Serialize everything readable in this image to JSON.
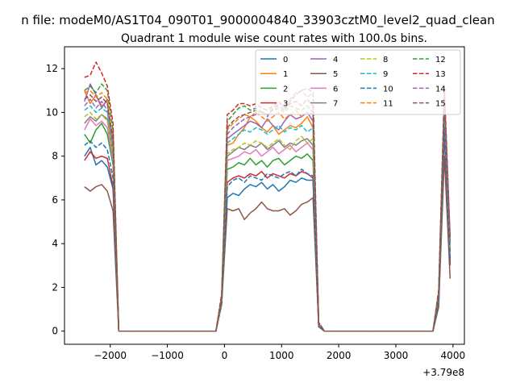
{
  "chart_data": {
    "type": "line",
    "suptitle": "n file: modeM0/AS1T04_090T01_9000004840_33903cztM0_level2_quad_clean",
    "title": "Quadrant 1 module wise count rates with 100.0s bins.",
    "xlabel": "",
    "ylabel": "",
    "x_offset_label": "+3.79e8",
    "xlim": [
      -2800,
      4200
    ],
    "ylim": [
      -0.6,
      13.0
    ],
    "x_ticks": [
      -2000,
      -1000,
      0,
      1000,
      2000,
      3000,
      4000
    ],
    "x_tick_labels": [
      "−2000",
      "−1000",
      "0",
      "1000",
      "2000",
      "3000",
      "4000"
    ],
    "y_ticks": [
      0,
      2,
      4,
      6,
      8,
      10,
      12
    ],
    "y_tick_labels": [
      "0",
      "2",
      "4",
      "6",
      "8",
      "10",
      "12"
    ],
    "grid": false,
    "legend_location": "upper-right",
    "legend_columns": 4,
    "x": [
      -2450,
      -2350,
      -2250,
      -2150,
      -2050,
      -1950,
      -1850,
      -1750,
      -150,
      -50,
      50,
      150,
      250,
      350,
      450,
      550,
      650,
      750,
      850,
      950,
      1050,
      1150,
      1250,
      1350,
      1450,
      1550,
      1650,
      1750,
      1850,
      1950,
      3650,
      3750,
      3850,
      3950
    ],
    "series": [
      {
        "name": "0",
        "color": "#1f77b4",
        "dash": "solid",
        "values": [
          8.0,
          8.4,
          7.6,
          7.8,
          7.5,
          6.5,
          0,
          0,
          0,
          1.3,
          6.1,
          6.3,
          6.2,
          6.5,
          6.7,
          6.6,
          6.8,
          6.5,
          6.7,
          6.4,
          6.6,
          6.9,
          6.8,
          7.0,
          6.9,
          6.9,
          0.2,
          0,
          0,
          0,
          0,
          1.2,
          9.0,
          3.0
        ]
      },
      {
        "name": "1",
        "color": "#ff7f0e",
        "dash": "solid",
        "values": [
          11.0,
          10.4,
          10.8,
          10.3,
          10.5,
          7.6,
          0,
          0,
          0,
          1.4,
          8.5,
          8.6,
          9.0,
          9.3,
          9.8,
          9.6,
          9.3,
          9.1,
          9.4,
          9.0,
          9.2,
          9.4,
          9.3,
          9.5,
          9.8,
          9.3,
          0.3,
          0,
          0,
          0,
          0,
          1.6,
          9.8,
          3.6
        ]
      },
      {
        "name": "2",
        "color": "#2ca02c",
        "dash": "solid",
        "values": [
          9.0,
          8.6,
          9.2,
          9.5,
          9.0,
          7.6,
          0,
          0,
          0,
          1.3,
          7.4,
          7.5,
          7.7,
          7.6,
          7.9,
          7.6,
          7.8,
          7.5,
          7.8,
          7.9,
          7.6,
          7.8,
          8.0,
          7.9,
          8.1,
          7.8,
          0.3,
          0,
          0,
          0,
          0,
          1.4,
          9.6,
          3.3
        ]
      },
      {
        "name": "3",
        "color": "#d62728",
        "dash": "solid",
        "values": [
          7.8,
          8.2,
          7.9,
          8.0,
          7.9,
          6.6,
          0,
          0,
          0,
          1.3,
          6.8,
          7.0,
          7.1,
          7.0,
          7.2,
          7.1,
          7.3,
          7.0,
          7.2,
          7.1,
          7.0,
          7.2,
          7.1,
          7.3,
          7.2,
          7.0,
          0.2,
          0,
          0,
          0,
          0,
          1.3,
          9.2,
          3.1
        ]
      },
      {
        "name": "4",
        "color": "#9467bd",
        "dash": "solid",
        "values": [
          10.5,
          11.3,
          10.8,
          10.2,
          10.6,
          8.2,
          0,
          0,
          0,
          1.5,
          8.8,
          9.0,
          9.2,
          9.4,
          9.6,
          9.5,
          9.3,
          9.7,
          9.4,
          9.2,
          9.6,
          9.9,
          9.7,
          9.8,
          10.0,
          9.6,
          0.3,
          0,
          0,
          0,
          0,
          1.6,
          10.2,
          3.7
        ]
      },
      {
        "name": "5",
        "color": "#8c564b",
        "dash": "solid",
        "values": [
          6.6,
          6.4,
          6.6,
          6.7,
          6.4,
          5.5,
          0,
          0,
          0,
          1.2,
          5.6,
          5.5,
          5.6,
          5.1,
          5.4,
          5.6,
          5.9,
          5.6,
          5.5,
          5.5,
          5.6,
          5.3,
          5.5,
          5.8,
          5.9,
          6.1,
          0.2,
          0,
          0,
          0,
          0,
          1.1,
          8.0,
          2.4
        ]
      },
      {
        "name": "6",
        "color": "#e377c2",
        "dash": "solid",
        "values": [
          9.2,
          9.7,
          9.4,
          9.6,
          9.3,
          7.8,
          0,
          0,
          0,
          1.4,
          7.8,
          7.9,
          8.0,
          8.2,
          8.1,
          8.3,
          8.0,
          8.2,
          8.4,
          8.1,
          8.3,
          8.5,
          8.2,
          8.4,
          8.6,
          8.3,
          0.3,
          0,
          0,
          0,
          0,
          1.5,
          9.9,
          3.5
        ]
      },
      {
        "name": "7",
        "color": "#7f7f7f",
        "dash": "solid",
        "values": [
          9.5,
          9.8,
          9.6,
          9.9,
          9.7,
          8.0,
          0,
          0,
          0,
          1.4,
          8.0,
          8.2,
          8.4,
          8.3,
          8.5,
          8.4,
          8.6,
          8.3,
          8.5,
          8.7,
          8.4,
          8.6,
          8.5,
          8.7,
          8.8,
          8.5,
          0.3,
          0,
          0,
          0,
          0,
          1.5,
          10.0,
          3.6
        ]
      },
      {
        "name": "8",
        "color": "#bcbd22",
        "dash": "dashed",
        "values": [
          9.8,
          10.0,
          9.7,
          9.9,
          9.6,
          8.1,
          0,
          0,
          0,
          1.4,
          8.1,
          8.3,
          8.4,
          8.6,
          8.5,
          8.7,
          8.6,
          8.4,
          8.6,
          8.8,
          8.5,
          8.3,
          8.7,
          8.9,
          8.6,
          8.8,
          0.3,
          0,
          0,
          0,
          0,
          1.5,
          10.1,
          3.8
        ]
      },
      {
        "name": "9",
        "color": "#17becf",
        "dash": "dashed",
        "values": [
          10.1,
          10.3,
          10.0,
          10.2,
          10.0,
          8.5,
          0,
          0,
          0,
          1.4,
          8.6,
          8.8,
          9.0,
          9.2,
          9.1,
          9.3,
          9.2,
          9.0,
          9.2,
          9.4,
          9.1,
          9.3,
          9.2,
          9.4,
          9.1,
          9.3,
          0.3,
          0,
          0,
          0,
          0,
          1.6,
          10.3,
          3.9
        ]
      },
      {
        "name": "10",
        "color": "#1f77b4",
        "dash": "dashed",
        "values": [
          8.5,
          8.7,
          8.4,
          8.6,
          8.3,
          7.0,
          0,
          0,
          0,
          1.3,
          6.6,
          6.9,
          7.0,
          6.8,
          7.1,
          7.0,
          6.9,
          7.2,
          7.1,
          7.0,
          7.2,
          7.3,
          7.1,
          7.4,
          7.2,
          7.1,
          0.2,
          0,
          0,
          0,
          0,
          1.3,
          9.3,
          3.2
        ]
      },
      {
        "name": "11",
        "color": "#ff7f0e",
        "dash": "dashed",
        "values": [
          10.9,
          11.0,
          10.7,
          10.9,
          10.6,
          8.7,
          0,
          0,
          0,
          1.5,
          9.2,
          9.5,
          9.7,
          9.9,
          9.8,
          10.0,
          9.8,
          9.6,
          9.8,
          10.0,
          9.7,
          9.9,
          10.1,
          9.8,
          10.0,
          9.9,
          0.3,
          0,
          0,
          0,
          0,
          1.7,
          10.6,
          4.0
        ]
      },
      {
        "name": "12",
        "color": "#2ca02c",
        "dash": "dashed",
        "values": [
          11.0,
          11.2,
          10.9,
          11.3,
          11.0,
          9.2,
          0,
          0,
          0,
          1.6,
          9.6,
          9.9,
          10.2,
          10.3,
          10.1,
          10.2,
          10.0,
          9.9,
          10.1,
          10.2,
          10.0,
          10.3,
          10.2,
          10.1,
          10.3,
          10.0,
          0.4,
          0,
          0,
          0,
          0,
          1.8,
          10.8,
          4.1
        ]
      },
      {
        "name": "13",
        "color": "#d62728",
        "dash": "dashed",
        "values": [
          11.6,
          11.7,
          12.3,
          11.8,
          11.2,
          9.5,
          0,
          0,
          0,
          1.7,
          9.9,
          10.1,
          10.4,
          10.4,
          10.3,
          10.4,
          10.2,
          10.1,
          10.3,
          10.5,
          10.2,
          10.4,
          10.5,
          10.3,
          10.6,
          10.3,
          0.4,
          0,
          0,
          0,
          0,
          1.9,
          11.2,
          4.3
        ]
      },
      {
        "name": "14",
        "color": "#9467bd",
        "dash": "dashed",
        "values": [
          10.3,
          10.6,
          10.2,
          10.5,
          10.1,
          8.6,
          0,
          0,
          0,
          1.5,
          9.0,
          9.3,
          9.5,
          9.7,
          9.8,
          9.9,
          10.1,
          9.8,
          10.2,
          10.4,
          10.3,
          10.6,
          10.9,
          11.0,
          10.7,
          10.9,
          0.3,
          0,
          0,
          0,
          0,
          1.7,
          10.5,
          4.0
        ]
      },
      {
        "name": "15",
        "color": "#8c564b",
        "dash": "dashed",
        "values": [
          10.6,
          10.8,
          10.5,
          10.7,
          10.4,
          8.8,
          0,
          0,
          0,
          1.5,
          9.3,
          9.6,
          9.8,
          9.9,
          10.0,
          10.1,
          10.0,
          9.9,
          10.2,
          10.3,
          10.1,
          10.5,
          10.8,
          11.0,
          11.1,
          10.9,
          0.3,
          0,
          0,
          0,
          0,
          1.7,
          10.7,
          4.2
        ]
      }
    ]
  }
}
